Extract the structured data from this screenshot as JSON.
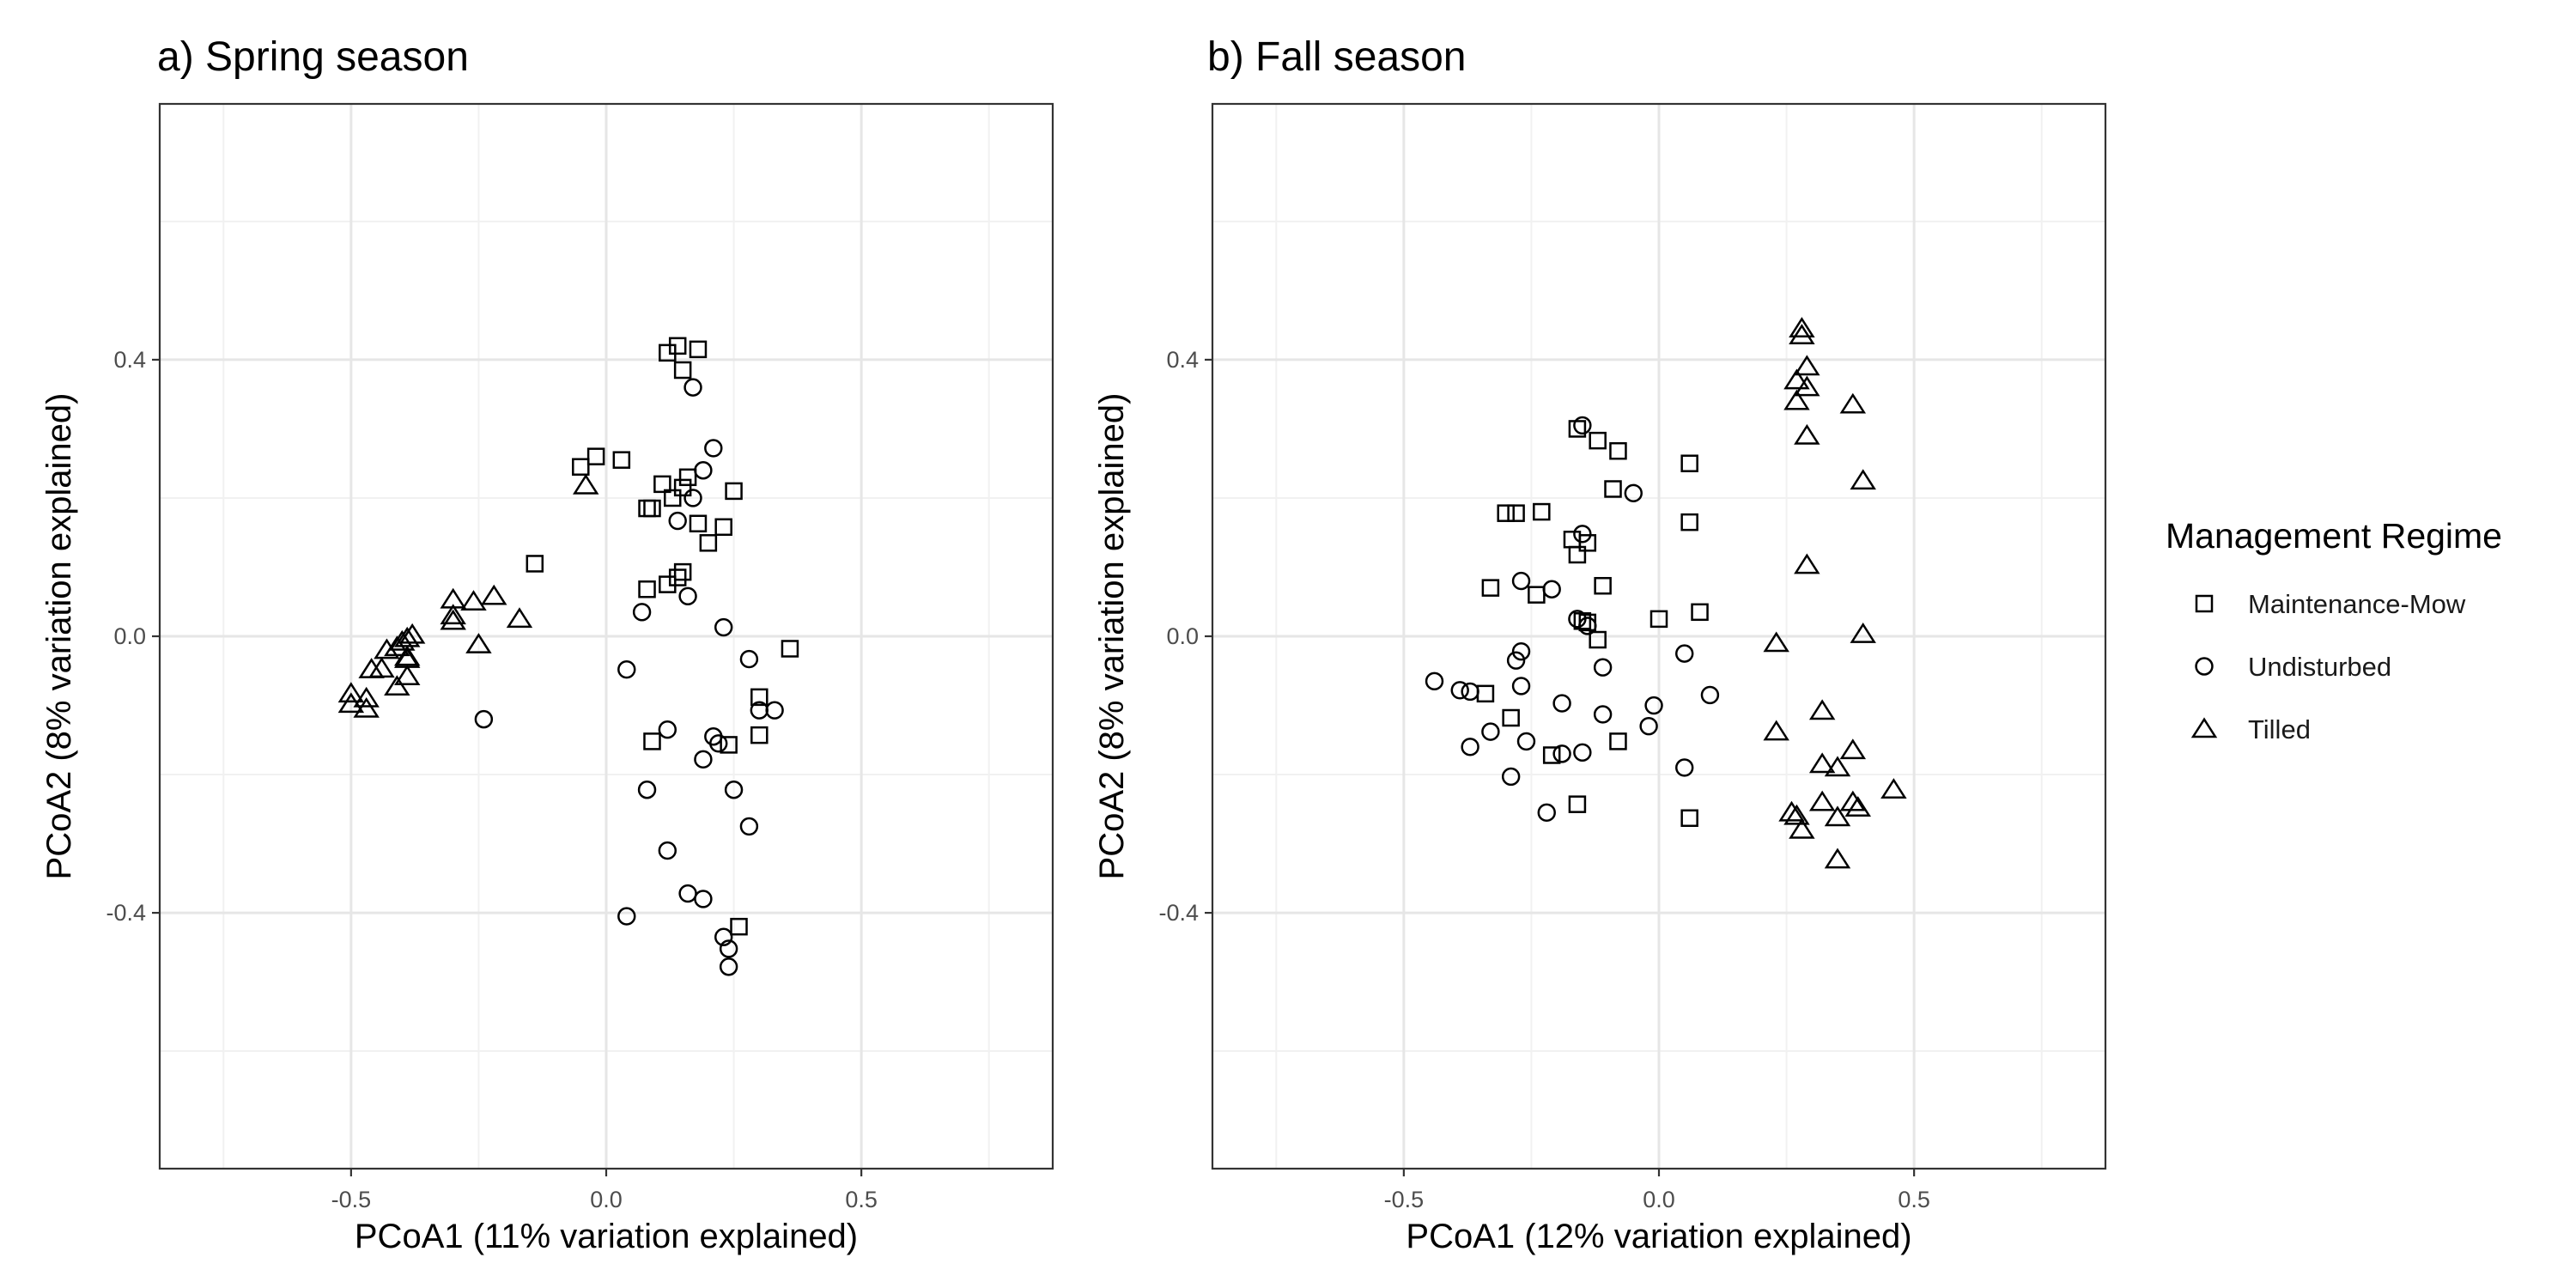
{
  "chart_data": [
    {
      "type": "scatter",
      "title": "a) Spring season",
      "xlabel": "PCoA1 (11% variation explained)",
      "ylabel": "PCoA2 (8% variation explained)",
      "xlim": [
        -0.875,
        0.875
      ],
      "ylim": [
        -0.77,
        0.77
      ],
      "xticks": [
        -0.5,
        0.0,
        0.5
      ],
      "xtick_labels": [
        "-0.5",
        "0.0",
        "0.5"
      ],
      "yticks": [
        -0.4,
        0.0,
        0.4
      ],
      "ytick_labels": [
        "-0.4",
        "0.0",
        "0.4"
      ],
      "grid": true,
      "series": [
        {
          "name": "Maintenance-Mow",
          "shape": "square",
          "points": [
            [
              0.12,
              0.41
            ],
            [
              0.14,
              0.42
            ],
            [
              0.18,
              0.415
            ],
            [
              0.15,
              0.385
            ],
            [
              -0.05,
              0.245
            ],
            [
              -0.02,
              0.26
            ],
            [
              0.03,
              0.255
            ],
            [
              0.11,
              0.22
            ],
            [
              0.16,
              0.23
            ],
            [
              0.15,
              0.215
            ],
            [
              0.13,
              0.2
            ],
            [
              0.08,
              0.185
            ],
            [
              0.09,
              0.185
            ],
            [
              0.25,
              0.21
            ],
            [
              0.18,
              0.163
            ],
            [
              0.23,
              0.158
            ],
            [
              0.2,
              0.135
            ],
            [
              -0.14,
              0.105
            ],
            [
              0.15,
              0.093
            ],
            [
              0.14,
              0.085
            ],
            [
              0.12,
              0.075
            ],
            [
              0.08,
              0.068
            ],
            [
              0.36,
              -0.018
            ],
            [
              0.3,
              -0.088
            ],
            [
              0.3,
              -0.143
            ],
            [
              0.09,
              -0.152
            ],
            [
              0.24,
              -0.157
            ],
            [
              0.26,
              -0.42
            ]
          ]
        },
        {
          "name": "Undisturbed",
          "shape": "circle",
          "points": [
            [
              0.17,
              0.36
            ],
            [
              0.21,
              0.272
            ],
            [
              0.19,
              0.24
            ],
            [
              0.17,
              0.2
            ],
            [
              0.14,
              0.167
            ],
            [
              0.16,
              0.058
            ],
            [
              0.07,
              0.035
            ],
            [
              0.23,
              0.013
            ],
            [
              0.28,
              -0.033
            ],
            [
              0.04,
              -0.048
            ],
            [
              0.3,
              -0.107
            ],
            [
              0.33,
              -0.107
            ],
            [
              -0.24,
              -0.12
            ],
            [
              0.12,
              -0.135
            ],
            [
              0.21,
              -0.145
            ],
            [
              0.22,
              -0.155
            ],
            [
              0.19,
              -0.178
            ],
            [
              0.08,
              -0.222
            ],
            [
              0.25,
              -0.222
            ],
            [
              0.28,
              -0.275
            ],
            [
              0.12,
              -0.31
            ],
            [
              0.16,
              -0.372
            ],
            [
              0.19,
              -0.38
            ],
            [
              0.04,
              -0.405
            ],
            [
              0.23,
              -0.435
            ],
            [
              0.24,
              -0.452
            ],
            [
              0.24,
              -0.478
            ]
          ]
        },
        {
          "name": "Tilled",
          "shape": "triangle",
          "points": [
            [
              -0.04,
              0.218
            ],
            [
              -0.22,
              0.058
            ],
            [
              -0.3,
              0.053
            ],
            [
              -0.26,
              0.05
            ],
            [
              -0.3,
              0.03
            ],
            [
              -0.3,
              0.022
            ],
            [
              -0.17,
              0.025
            ],
            [
              -0.38,
              0.002
            ],
            [
              -0.39,
              -0.003
            ],
            [
              -0.4,
              -0.008
            ],
            [
              -0.25,
              -0.012
            ],
            [
              -0.41,
              -0.016
            ],
            [
              -0.43,
              -0.02
            ],
            [
              -0.39,
              -0.03
            ],
            [
              -0.39,
              -0.033
            ],
            [
              -0.44,
              -0.047
            ],
            [
              -0.46,
              -0.048
            ],
            [
              -0.39,
              -0.058
            ],
            [
              -0.41,
              -0.073
            ],
            [
              -0.5,
              -0.083
            ],
            [
              -0.47,
              -0.09
            ],
            [
              -0.5,
              -0.098
            ],
            [
              -0.47,
              -0.105
            ]
          ]
        }
      ]
    },
    {
      "type": "scatter",
      "title": "b) Fall season",
      "xlabel": "PCoA1 (12% variation explained)",
      "ylabel": "PCoA2 (8% variation explained)",
      "xlim": [
        -0.875,
        0.875
      ],
      "ylim": [
        -0.77,
        0.77
      ],
      "xticks": [
        -0.5,
        0.0,
        0.5
      ],
      "xtick_labels": [
        "-0.5",
        "0.0",
        "0.5"
      ],
      "yticks": [
        -0.4,
        0.0,
        0.4
      ],
      "ytick_labels": [
        "-0.4",
        "0.0",
        "0.4"
      ],
      "grid": true,
      "series": [
        {
          "name": "Maintenance-Mow",
          "shape": "square",
          "points": [
            [
              -0.16,
              0.3
            ],
            [
              -0.12,
              0.283
            ],
            [
              -0.08,
              0.268
            ],
            [
              0.06,
              0.25
            ],
            [
              -0.09,
              0.213
            ],
            [
              -0.3,
              0.178
            ],
            [
              -0.28,
              0.178
            ],
            [
              -0.23,
              0.18
            ],
            [
              0.06,
              0.165
            ],
            [
              -0.17,
              0.14
            ],
            [
              -0.14,
              0.135
            ],
            [
              -0.16,
              0.118
            ],
            [
              -0.11,
              0.073
            ],
            [
              -0.33,
              0.07
            ],
            [
              -0.24,
              0.06
            ],
            [
              0.08,
              0.035
            ],
            [
              -0.15,
              0.022
            ],
            [
              -0.14,
              0.02
            ],
            [
              0.0,
              0.025
            ],
            [
              -0.12,
              -0.005
            ],
            [
              -0.34,
              -0.083
            ],
            [
              -0.29,
              -0.118
            ],
            [
              -0.08,
              -0.152
            ],
            [
              -0.21,
              -0.172
            ],
            [
              -0.16,
              -0.243
            ],
            [
              0.06,
              -0.263
            ]
          ]
        },
        {
          "name": "Undisturbed",
          "shape": "circle",
          "points": [
            [
              -0.15,
              0.305
            ],
            [
              -0.05,
              0.207
            ],
            [
              -0.15,
              0.148
            ],
            [
              -0.27,
              0.08
            ],
            [
              -0.21,
              0.068
            ],
            [
              -0.16,
              0.025
            ],
            [
              -0.14,
              0.015
            ],
            [
              -0.27,
              -0.022
            ],
            [
              -0.28,
              -0.035
            ],
            [
              0.05,
              -0.025
            ],
            [
              -0.11,
              -0.045
            ],
            [
              -0.44,
              -0.065
            ],
            [
              -0.39,
              -0.078
            ],
            [
              -0.37,
              -0.08
            ],
            [
              -0.27,
              -0.072
            ],
            [
              0.1,
              -0.085
            ],
            [
              -0.19,
              -0.097
            ],
            [
              -0.01,
              -0.1
            ],
            [
              -0.11,
              -0.113
            ],
            [
              -0.02,
              -0.13
            ],
            [
              -0.33,
              -0.138
            ],
            [
              -0.26,
              -0.152
            ],
            [
              -0.37,
              -0.16
            ],
            [
              -0.15,
              -0.168
            ],
            [
              -0.19,
              -0.17
            ],
            [
              0.05,
              -0.19
            ],
            [
              -0.29,
              -0.203
            ],
            [
              -0.22,
              -0.255
            ]
          ]
        },
        {
          "name": "Tilled",
          "shape": "triangle",
          "points": [
            [
              0.28,
              0.445
            ],
            [
              0.28,
              0.435
            ],
            [
              0.29,
              0.39
            ],
            [
              0.27,
              0.37
            ],
            [
              0.29,
              0.36
            ],
            [
              0.27,
              0.34
            ],
            [
              0.38,
              0.335
            ],
            [
              0.29,
              0.29
            ],
            [
              0.4,
              0.225
            ],
            [
              0.29,
              0.103
            ],
            [
              0.4,
              0.003
            ],
            [
              0.23,
              -0.01
            ],
            [
              0.32,
              -0.108
            ],
            [
              0.23,
              -0.138
            ],
            [
              0.38,
              -0.165
            ],
            [
              0.32,
              -0.185
            ],
            [
              0.35,
              -0.19
            ],
            [
              0.46,
              -0.222
            ],
            [
              0.32,
              -0.24
            ],
            [
              0.38,
              -0.24
            ],
            [
              0.39,
              -0.248
            ],
            [
              0.26,
              -0.255
            ],
            [
              0.27,
              -0.26
            ],
            [
              0.35,
              -0.262
            ],
            [
              0.28,
              -0.28
            ],
            [
              0.35,
              -0.323
            ]
          ]
        }
      ]
    }
  ],
  "legend": {
    "title": "Management Regime",
    "items": [
      {
        "label": "Maintenance-Mow",
        "shape": "square"
      },
      {
        "label": "Undisturbed",
        "shape": "circle"
      },
      {
        "label": "Tilled",
        "shape": "triangle"
      }
    ]
  }
}
